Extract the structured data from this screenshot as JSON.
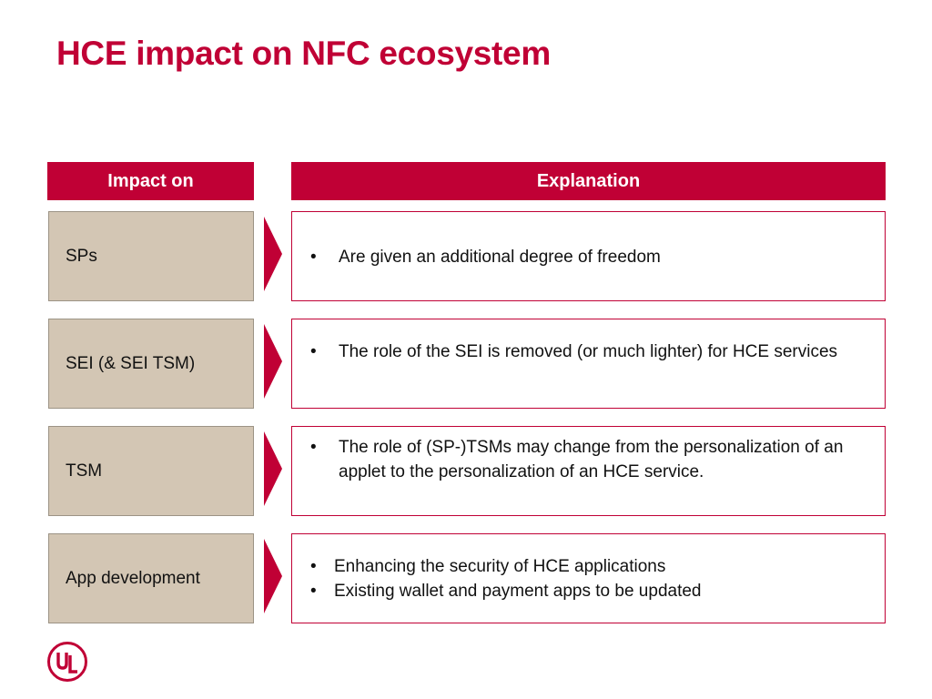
{
  "title": "HCE impact on NFC ecosystem",
  "headers": {
    "impact": "Impact on",
    "explanation": "Explanation"
  },
  "rows": [
    {
      "impact": "SPs",
      "bullets": [
        "Are given an additional degree of freedom"
      ]
    },
    {
      "impact": "SEI (& SEI TSM)",
      "bullets": [
        "The role of the SEI is removed (or much lighter) for HCE services"
      ]
    },
    {
      "impact": "TSM",
      "bullets": [
        "The role of (SP-)TSMs may change from the personalization of an applet to the personalization of an HCE service."
      ]
    },
    {
      "impact": "App development",
      "bullets": [
        "Enhancing the security of HCE applications",
        "Existing wallet and payment apps to be updated"
      ]
    }
  ],
  "logo": {
    "text": "UL"
  },
  "colors": {
    "accent": "#c00035",
    "impact_fill": "#d3c6b4"
  }
}
